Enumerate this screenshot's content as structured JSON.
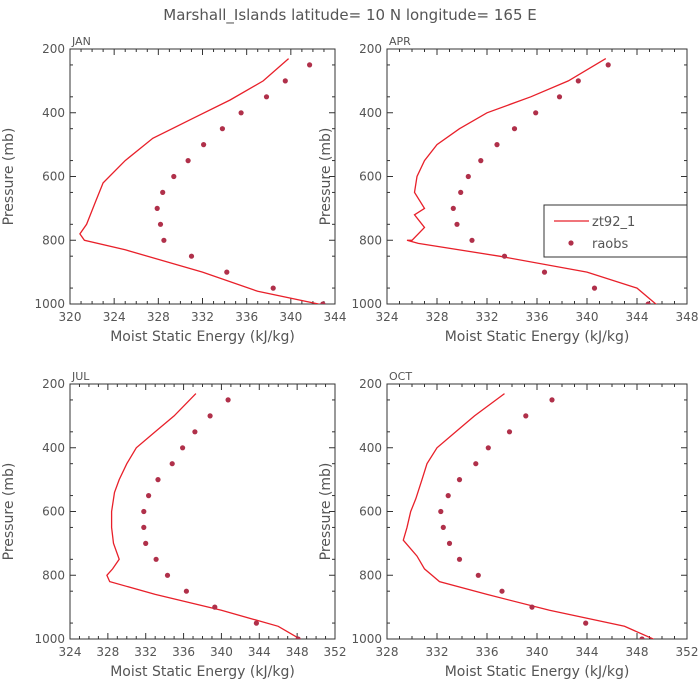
{
  "figure": {
    "title": "Marshall_Islands  latitude= 10 N longitude= 165 E",
    "xlabel": "Moist Static Energy (kJ/kg)",
    "ylabel": "Pressure (mb)",
    "legend": {
      "model": "zt92_1",
      "obs": "raobs"
    },
    "colors": {
      "model": "#e8202a",
      "obs": "#b0304a",
      "axes": "#333333",
      "text": "#555555"
    }
  },
  "chart_data": [
    {
      "type": "line+scatter",
      "panel": "JAN",
      "title": "JAN",
      "xlabel": "Moist Static Energy (kJ/kg)",
      "ylabel": "Pressure (mb)",
      "xlim": [
        320,
        344
      ],
      "ylim": [
        1000,
        200
      ],
      "xticks": [
        320,
        324,
        328,
        332,
        336,
        340,
        344
      ],
      "yticks": [
        200,
        400,
        600,
        800,
        1000
      ],
      "series": [
        {
          "name": "zt92_1",
          "kind": "line",
          "points": [
            [
              339.8,
              230
            ],
            [
              337.5,
              300
            ],
            [
              334.5,
              360
            ],
            [
              331,
              420
            ],
            [
              327.5,
              480
            ],
            [
              325,
              550
            ],
            [
              323,
              620
            ],
            [
              322.3,
              680
            ],
            [
              321.5,
              750
            ],
            [
              320.9,
              780
            ],
            [
              321.3,
              800
            ],
            [
              325,
              830
            ],
            [
              332,
              900
            ],
            [
              337,
              960
            ],
            [
              342.5,
              1000
            ],
            [
              343.2,
              1010
            ]
          ]
        },
        {
          "name": "raobs",
          "kind": "scatter",
          "points": [
            [
              341.7,
              250
            ],
            [
              339.5,
              300
            ],
            [
              337.8,
              350
            ],
            [
              335.5,
              400
            ],
            [
              333.8,
              450
            ],
            [
              332.1,
              500
            ],
            [
              330.7,
              550
            ],
            [
              329.4,
              600
            ],
            [
              328.4,
              650
            ],
            [
              327.9,
              700
            ],
            [
              328.2,
              750
            ],
            [
              328.5,
              800
            ],
            [
              331,
              850
            ],
            [
              334.2,
              900
            ],
            [
              338.4,
              950
            ],
            [
              342.9,
              1000
            ]
          ]
        }
      ]
    },
    {
      "type": "line+scatter",
      "panel": "APR",
      "title": "APR",
      "xlabel": "Moist Static Energy (kJ/kg)",
      "ylabel": "Pressure (mb)",
      "xlim": [
        324,
        348
      ],
      "ylim": [
        1000,
        200
      ],
      "xticks": [
        324,
        328,
        332,
        336,
        340,
        344,
        348
      ],
      "yticks": [
        200,
        400,
        600,
        800,
        1000
      ],
      "legend_position": "right",
      "series": [
        {
          "name": "zt92_1",
          "kind": "line",
          "points": [
            [
              341.5,
              230
            ],
            [
              338.5,
              300
            ],
            [
              335.5,
              350
            ],
            [
              332,
              400
            ],
            [
              329.8,
              450
            ],
            [
              328,
              500
            ],
            [
              327,
              550
            ],
            [
              326.4,
              600
            ],
            [
              326.2,
              650
            ],
            [
              327,
              700
            ],
            [
              326.2,
              720
            ],
            [
              327,
              760
            ],
            [
              326,
              800
            ],
            [
              325.6,
              800
            ],
            [
              326.5,
              810
            ],
            [
              333,
              850
            ],
            [
              340,
              900
            ],
            [
              344,
              950
            ],
            [
              345.5,
              1000
            ],
            [
              346,
              1010
            ]
          ]
        },
        {
          "name": "raobs",
          "kind": "scatter",
          "points": [
            [
              341.7,
              250
            ],
            [
              339.3,
              300
            ],
            [
              337.8,
              350
            ],
            [
              335.9,
              400
            ],
            [
              334.2,
              450
            ],
            [
              332.8,
              500
            ],
            [
              331.5,
              550
            ],
            [
              330.5,
              600
            ],
            [
              329.9,
              650
            ],
            [
              329.3,
              700
            ],
            [
              329.6,
              750
            ],
            [
              330.8,
              800
            ],
            [
              333.4,
              850
            ],
            [
              336.6,
              900
            ],
            [
              340.6,
              950
            ],
            [
              344.9,
              1000
            ]
          ]
        }
      ]
    },
    {
      "type": "line+scatter",
      "panel": "JUL",
      "title": "JUL",
      "xlabel": "Moist Static Energy (kJ/kg)",
      "ylabel": "Pressure (mb)",
      "xlim": [
        324,
        352
      ],
      "ylim": [
        1000,
        200
      ],
      "xticks": [
        324,
        328,
        332,
        336,
        340,
        344,
        348,
        352
      ],
      "yticks": [
        200,
        400,
        600,
        800,
        1000
      ],
      "series": [
        {
          "name": "zt92_1",
          "kind": "line",
          "points": [
            [
              337.3,
              230
            ],
            [
              335,
              300
            ],
            [
              333,
              350
            ],
            [
              331,
              400
            ],
            [
              330,
              450
            ],
            [
              329.2,
              500
            ],
            [
              328.7,
              540
            ],
            [
              328.4,
              600
            ],
            [
              328.4,
              650
            ],
            [
              328.6,
              700
            ],
            [
              329.2,
              750
            ],
            [
              328.5,
              780
            ],
            [
              327.9,
              800
            ],
            [
              328.2,
              820
            ],
            [
              333,
              860
            ],
            [
              340,
              910
            ],
            [
              346,
              960
            ],
            [
              348.3,
              1000
            ],
            [
              348.6,
              1010
            ]
          ]
        },
        {
          "name": "raobs",
          "kind": "scatter",
          "points": [
            [
              340.7,
              250
            ],
            [
              338.8,
              300
            ],
            [
              337.2,
              350
            ],
            [
              335.9,
              400
            ],
            [
              334.8,
              450
            ],
            [
              333.3,
              500
            ],
            [
              332.3,
              550
            ],
            [
              331.8,
              600
            ],
            [
              331.8,
              650
            ],
            [
              332,
              700
            ],
            [
              333.1,
              750
            ],
            [
              334.3,
              800
            ],
            [
              336.3,
              850
            ],
            [
              339.3,
              900
            ],
            [
              343.7,
              950
            ],
            [
              348.1,
              1000
            ]
          ]
        }
      ]
    },
    {
      "type": "line+scatter",
      "panel": "OCT",
      "title": "OCT",
      "xlabel": "Moist Static Energy (kJ/kg)",
      "ylabel": "Pressure (mb)",
      "xlim": [
        328,
        352
      ],
      "ylim": [
        1000,
        200
      ],
      "xticks": [
        328,
        332,
        336,
        340,
        344,
        348,
        352
      ],
      "yticks": [
        200,
        400,
        600,
        800,
        1000
      ],
      "series": [
        {
          "name": "zt92_1",
          "kind": "line",
          "points": [
            [
              337.4,
              230
            ],
            [
              335,
              300
            ],
            [
              333.5,
              350
            ],
            [
              332,
              400
            ],
            [
              331.2,
              450
            ],
            [
              330.8,
              500
            ],
            [
              330.3,
              560
            ],
            [
              329.9,
              600
            ],
            [
              329.6,
              650
            ],
            [
              329.3,
              690
            ],
            [
              330.4,
              740
            ],
            [
              331,
              780
            ],
            [
              331.6,
              800
            ],
            [
              332.2,
              820
            ],
            [
              336,
              860
            ],
            [
              341,
              910
            ],
            [
              347,
              960
            ],
            [
              349.3,
              1000
            ],
            [
              349.5,
              1010
            ]
          ]
        },
        {
          "name": "raobs",
          "kind": "scatter",
          "points": [
            [
              341.2,
              250
            ],
            [
              339.1,
              300
            ],
            [
              337.8,
              350
            ],
            [
              336.1,
              400
            ],
            [
              335.1,
              450
            ],
            [
              333.8,
              500
            ],
            [
              332.9,
              550
            ],
            [
              332.3,
              600
            ],
            [
              332.5,
              650
            ],
            [
              333,
              700
            ],
            [
              333.8,
              750
            ],
            [
              335.3,
              800
            ],
            [
              337.2,
              850
            ],
            [
              339.6,
              900
            ],
            [
              343.9,
              950
            ],
            [
              348.4,
              1000
            ]
          ]
        }
      ]
    }
  ]
}
